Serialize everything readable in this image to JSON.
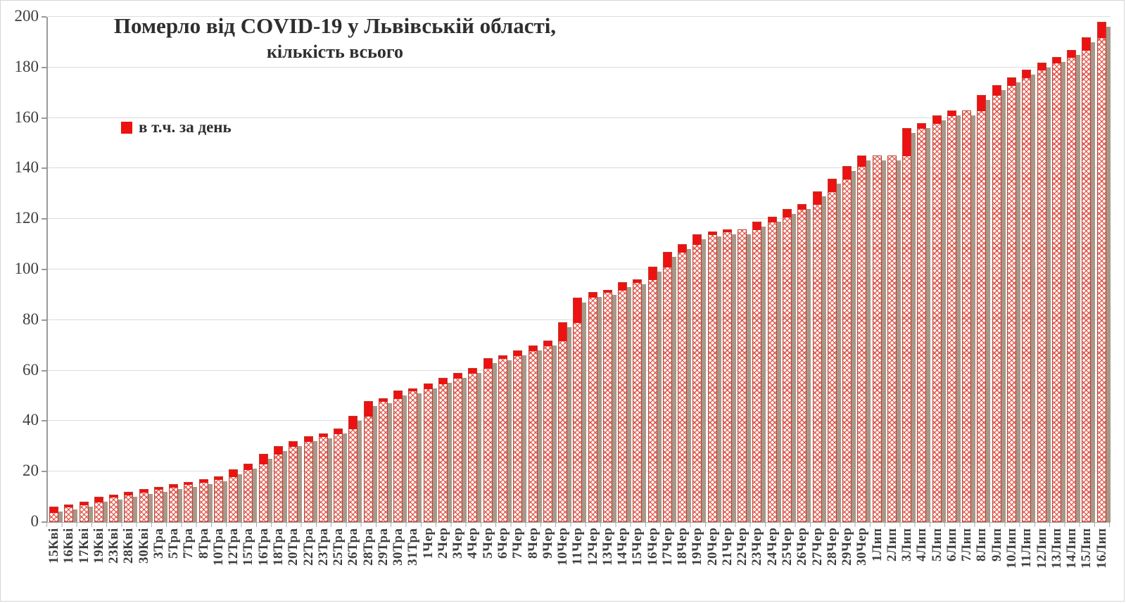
{
  "title": {
    "line1": "Померло від COVID-19 у Львівській області,",
    "line2": "кількість всього"
  },
  "legend": {
    "label": "в т.ч. за день",
    "swatch_color": "#ee1111"
  },
  "colors": {
    "daily_cap": "#ee1111",
    "bar_border": "#b8402f",
    "bar_pattern": "#db3528",
    "bar_shadow": "#a6988a",
    "gridline": "#dcdcdc",
    "axis": "#9a9a9a",
    "text": "#3d3d3d"
  },
  "chart_data": {
    "type": "bar",
    "stacked": true,
    "grid": true,
    "legend_position": "inside-top-left",
    "title": "Померло від COVID-19 у Львівській області, кількість всього",
    "xlabel": "",
    "ylabel": "",
    "ylim": [
      0,
      200
    ],
    "y_ticks": [
      0,
      20,
      40,
      60,
      80,
      100,
      120,
      140,
      160,
      180,
      200
    ],
    "categories": [
      "15Кві",
      "16Кві",
      "17Кві",
      "19Кві",
      "23Кві",
      "28Кві",
      "30Кві",
      "3Тра",
      "5Тра",
      "7Тра",
      "8Тра",
      "10Тра",
      "12Тра",
      "15Тра",
      "16Тра",
      "18Тра",
      "20Тра",
      "22Тра",
      "23Тра",
      "25Тра",
      "26Тра",
      "28Тра",
      "29Тра",
      "30Тра",
      "31Тра",
      "1Чер",
      "2Чер",
      "3Чер",
      "4Чер",
      "5Чер",
      "6Чер",
      "7Чер",
      "8Чер",
      "9Чер",
      "10Чер",
      "11Чер",
      "12Чер",
      "13Чер",
      "14Чер",
      "15Чер",
      "16Чер",
      "17Чер",
      "18Чер",
      "19Чер",
      "20Чер",
      "21Чер",
      "22Чер",
      "23Чер",
      "24Чер",
      "25Чер",
      "26Чер",
      "27Чер",
      "28Чер",
      "29Чер",
      "30Чер",
      "1Лип",
      "2Лип",
      "3Лип",
      "4Лип",
      "5Лип",
      "6Лип",
      "7Лип",
      "8Лип",
      "9Лип",
      "10Лип",
      "11Лип",
      "12Лип",
      "13Лип",
      "14Лип",
      "15Лип",
      "16Лип"
    ],
    "series": [
      {
        "name": "кількість всього (накопичено)",
        "values": [
          6,
          7,
          8,
          10,
          11,
          12,
          13,
          14,
          15,
          16,
          17,
          18,
          21,
          23,
          27,
          30,
          32,
          34,
          35,
          37,
          42,
          48,
          49,
          52,
          53,
          55,
          57,
          59,
          61,
          65,
          66,
          68,
          70,
          72,
          79,
          89,
          91,
          92,
          95,
          96,
          101,
          107,
          110,
          114,
          115,
          116,
          116,
          119,
          121,
          124,
          126,
          131,
          136,
          141,
          145,
          145,
          145,
          156,
          158,
          161,
          163,
          163,
          169,
          173,
          176,
          179,
          182,
          184,
          187,
          192,
          198
        ]
      },
      {
        "name": "в т.ч. за день",
        "values": [
          2,
          1,
          1,
          2,
          1,
          1,
          1,
          1,
          1,
          1,
          1,
          1,
          3,
          2,
          4,
          3,
          2,
          2,
          1,
          2,
          5,
          6,
          1,
          3,
          1,
          2,
          2,
          2,
          2,
          4,
          1,
          2,
          2,
          2,
          7,
          10,
          2,
          1,
          3,
          1,
          5,
          6,
          3,
          4,
          1,
          1,
          0,
          3,
          2,
          3,
          2,
          5,
          5,
          5,
          4,
          0,
          0,
          11,
          2,
          3,
          2,
          0,
          6,
          4,
          3,
          3,
          3,
          2,
          3,
          5,
          6
        ]
      }
    ]
  }
}
